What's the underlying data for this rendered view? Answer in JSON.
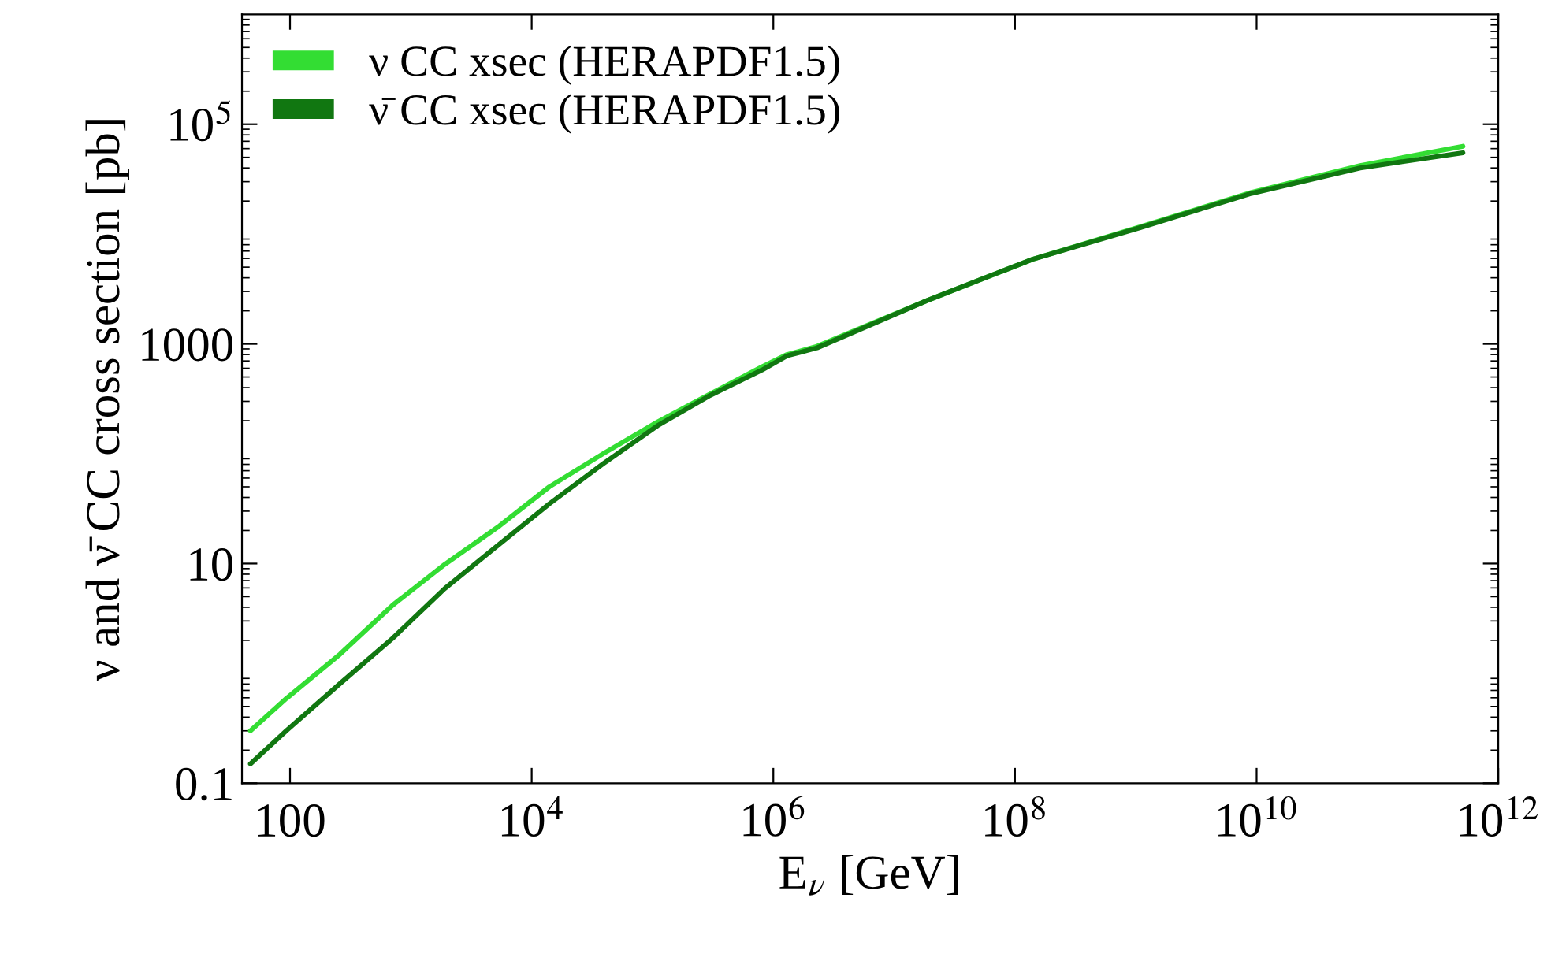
{
  "chart_data": {
    "type": "line",
    "xlabel": "E$_{ν}$ [GeV]",
    "ylabel": "ν and ν̄ CC cross section [pb]",
    "log": "xy",
    "xlim": [
      40,
      1000000000000.0
    ],
    "ylim": [
      0.1,
      1000000
    ],
    "xticks": [
      100,
      {
        "value": 10000,
        "label": "10$^{4}$"
      },
      {
        "value": 1000000,
        "label": "10$^{6}$"
      },
      {
        "value": 100000000,
        "label": "10$^{8}$"
      },
      {
        "value": 10000000000,
        "label": "10$^{10}$"
      },
      {
        "value": 1000000000000,
        "label": "10$^{12}$"
      }
    ],
    "yticks": [
      0.1,
      10,
      1000,
      {
        "value": 100000,
        "label": "10$^{5}$"
      }
    ],
    "legend": "top left",
    "grid": false,
    "line_style": "solid",
    "x": [
      47,
      93,
      260,
      710,
      1900,
      5400,
      14000,
      39000,
      110000,
      300000,
      810000,
      1300000,
      2300000,
      19000000,
      140000000,
      1100000000,
      9100000000,
      72000000000,
      510000000000
    ],
    "series": [
      {
        "name": "ν CC xsec (HERAPDF1.5)",
        "color": "#33dd33",
        "values": [
          0.3,
          0.59,
          1.5,
          4.2,
          9.8,
          22,
          50,
          100,
          195,
          350,
          620,
          800,
          950,
          2500,
          5900,
          11700,
          24000,
          42000,
          63000
        ]
      },
      {
        "name": "ν̄ CC xsec (HERAPDF1.5)",
        "color": "#117711",
        "values": [
          0.15,
          0.3,
          0.81,
          2.1,
          5.9,
          15,
          35,
          81,
          180,
          340,
          580,
          780,
          920,
          2500,
          5900,
          11500,
          23500,
          40000,
          55000
        ]
      }
    ]
  }
}
